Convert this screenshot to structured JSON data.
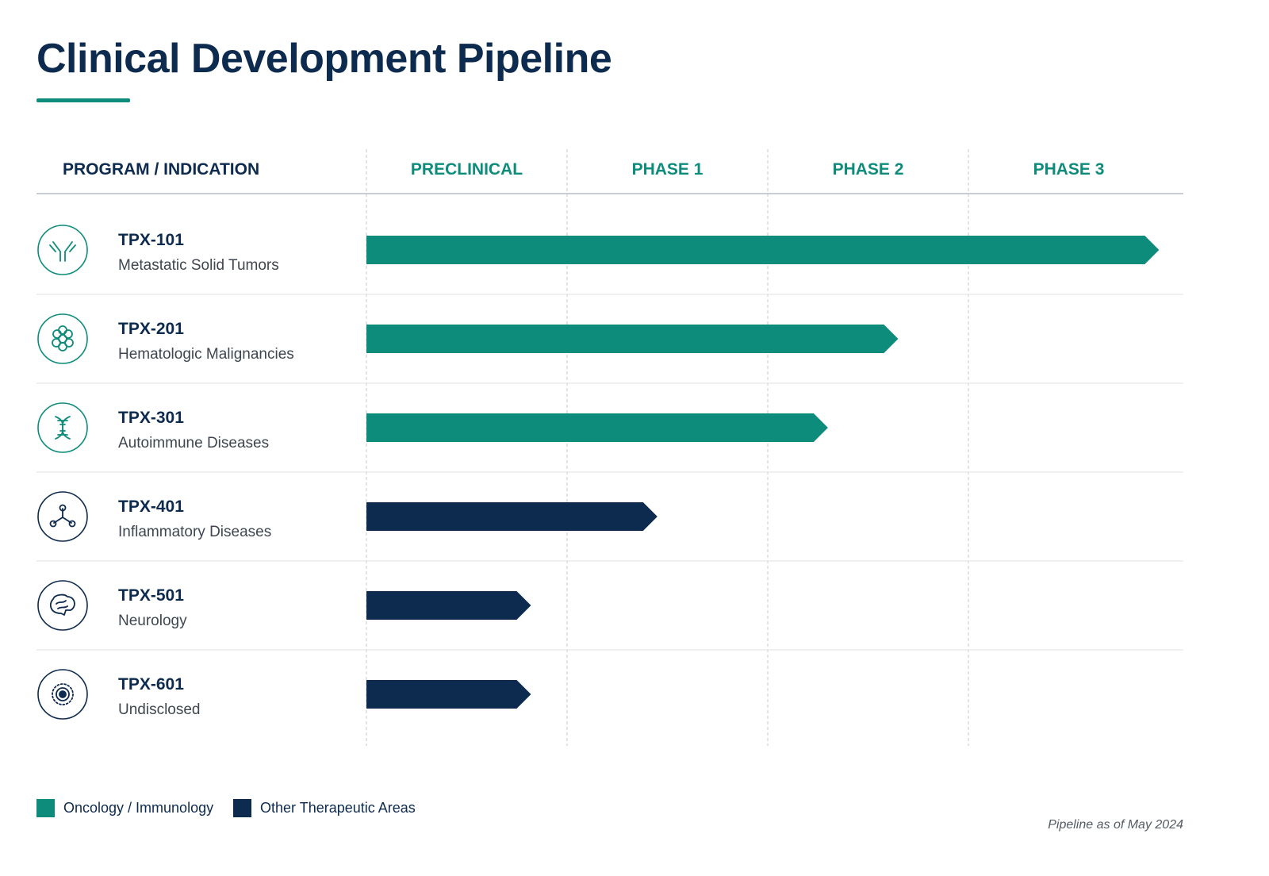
{
  "title": "Clinical Development Pipeline",
  "colors": {
    "oncology": "#0e8c7b",
    "other": "#0d2a4f",
    "phase_header": "#0e8c7b",
    "text_dark": "#0d2a4f",
    "text_muted": "#3f4650",
    "grid": "#cfd3d8"
  },
  "chart_data": {
    "type": "bar",
    "orientation": "horizontal",
    "column_header": "PROGRAM / INDICATION",
    "stages": [
      "PRECLINICAL",
      "PHASE 1",
      "PHASE 2",
      "PHASE 3"
    ],
    "xlim": [
      0,
      4
    ],
    "programs": [
      {
        "name": "TPX-101",
        "indication": "Metastatic Solid Tumors",
        "progress": 3.95,
        "category": "oncology",
        "icon": "antibody-icon"
      },
      {
        "name": "TPX-201",
        "indication": "Hematologic Malignancies",
        "progress": 2.65,
        "category": "oncology",
        "icon": "cell-cluster-icon"
      },
      {
        "name": "TPX-301",
        "indication": "Autoimmune Diseases",
        "progress": 2.3,
        "category": "oncology",
        "icon": "dna-icon"
      },
      {
        "name": "TPX-401",
        "indication": "Inflammatory Diseases",
        "progress": 1.45,
        "category": "other",
        "icon": "molecule-icon"
      },
      {
        "name": "TPX-501",
        "indication": "Neurology",
        "progress": 0.82,
        "category": "other",
        "icon": "brain-icon"
      },
      {
        "name": "TPX-601",
        "indication": "Undisclosed",
        "progress": 0.82,
        "category": "other",
        "icon": "target-icon"
      }
    ]
  },
  "legend": [
    {
      "label": "Oncology / Immunology",
      "category": "oncology"
    },
    {
      "label": "Other Therapeutic Areas",
      "category": "other"
    }
  ],
  "footnote": "Pipeline as of May 2024"
}
